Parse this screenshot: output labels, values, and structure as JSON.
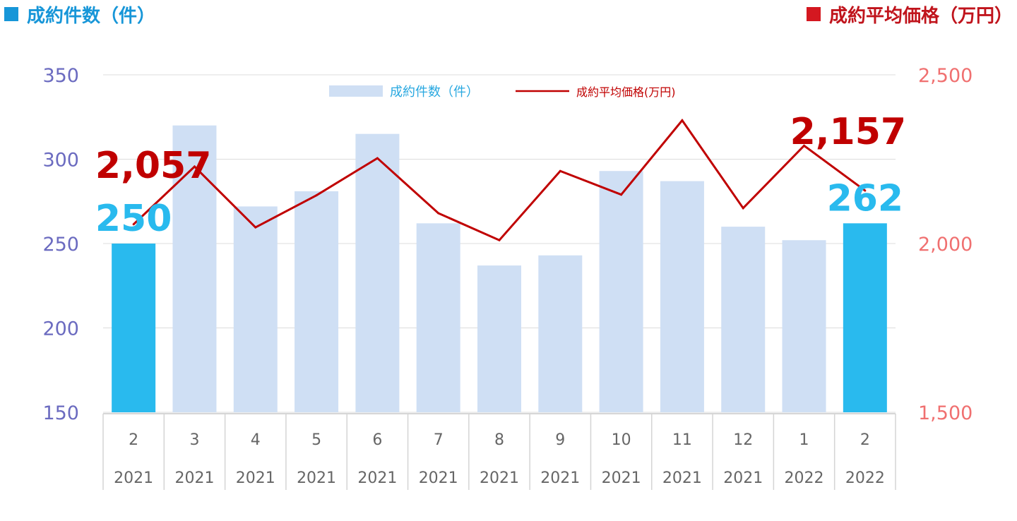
{
  "header": {
    "left_title": "成約件数（件）",
    "right_title": "成約平均価格（万円）",
    "left_color": "#1796d8",
    "right_color": "#d41820"
  },
  "chart_data": {
    "type": "bar",
    "categories": [
      {
        "month": "2",
        "year": "2021"
      },
      {
        "month": "3",
        "year": "2021"
      },
      {
        "month": "4",
        "year": "2021"
      },
      {
        "month": "5",
        "year": "2021"
      },
      {
        "month": "6",
        "year": "2021"
      },
      {
        "month": "7",
        "year": "2021"
      },
      {
        "month": "8",
        "year": "2021"
      },
      {
        "month": "9",
        "year": "2021"
      },
      {
        "month": "10",
        "year": "2021"
      },
      {
        "month": "11",
        "year": "2021"
      },
      {
        "month": "12",
        "year": "2021"
      },
      {
        "month": "1",
        "year": "2022"
      },
      {
        "month": "2",
        "year": "2022"
      }
    ],
    "series": [
      {
        "name": "成約件数（件）",
        "type": "bar",
        "axis": "left",
        "values": [
          250,
          320,
          272,
          281,
          315,
          262,
          237,
          243,
          293,
          287,
          260,
          252,
          262
        ],
        "color": "#cfdff4",
        "highlight_color": "#29baee",
        "highlight_indices": [
          0,
          12
        ]
      },
      {
        "name": "成約平均価格(万円)",
        "type": "line",
        "axis": "right",
        "values": [
          2057,
          2228,
          2048,
          2143,
          2253,
          2090,
          2010,
          2215,
          2145,
          2365,
          2105,
          2290,
          2157
        ],
        "color": "#c00000"
      }
    ],
    "left_axis": {
      "min": 150,
      "max": 350,
      "ticks": [
        "150",
        "200",
        "250",
        "300",
        "350"
      ],
      "color": "#6b6bc0"
    },
    "right_axis": {
      "min": 1500,
      "max": 2500,
      "ticks": [
        "1,500",
        "2,000",
        "2,500"
      ],
      "color": "#f07070"
    },
    "annotations": [
      {
        "series": "bar",
        "index": 0,
        "text": "250",
        "color": "#29baee"
      },
      {
        "series": "bar",
        "index": 12,
        "text": "262",
        "color": "#29baee"
      },
      {
        "series": "line",
        "index": 0,
        "text": "2,057",
        "color": "#c00000"
      },
      {
        "series": "line",
        "index": 12,
        "text": "2,157",
        "color": "#c00000"
      }
    ],
    "legend": {
      "position": "top-center"
    },
    "grid": true,
    "xlabel": "",
    "ylabel": ""
  }
}
